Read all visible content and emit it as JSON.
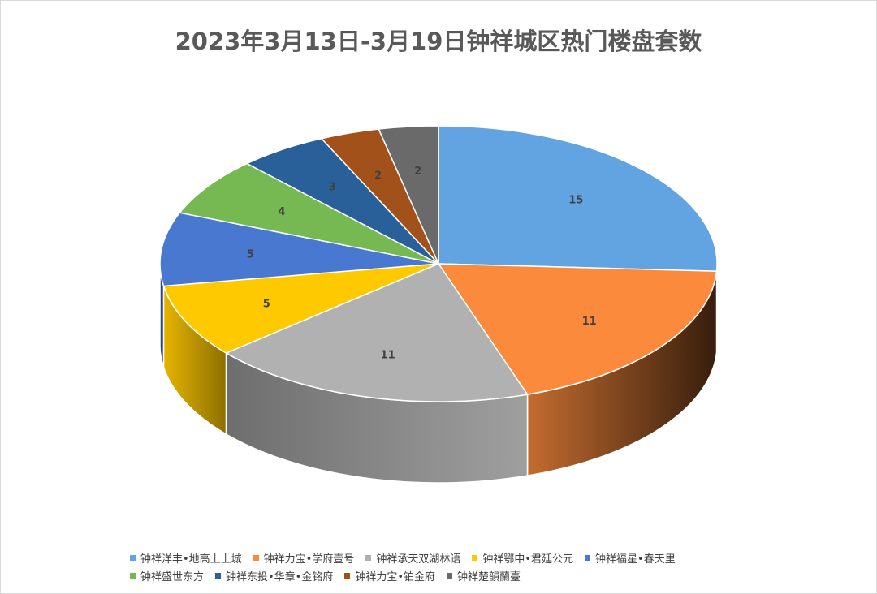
{
  "chart_data": {
    "type": "pie",
    "title": "2023年3月13日-3月19日钟祥城区热门楼盘套数",
    "categories": [
      "钟祥洋丰•地高上上城",
      "钟祥力宝•学府壹号",
      "钟祥承天双湖林语",
      "钟祥鄂中•君廷公元",
      "钟祥福星•春天里",
      "钟祥盛世东方",
      "钟祥东投•华章•金铭府",
      "钟祥力宝•铂金府",
      "钟祥楚韻蘭臺"
    ],
    "values": [
      15,
      11,
      11,
      5,
      5,
      4,
      3,
      2,
      2
    ],
    "colors": [
      "#62a3e2",
      "#fb8a3c",
      "#b1b1b1",
      "#ffc900",
      "#4878d0",
      "#76b852",
      "#2a6099",
      "#a3511a",
      "#6a6a6a"
    ],
    "data_labels": [
      "15",
      "11",
      "11",
      "5",
      "5",
      "4",
      "3",
      "2",
      "2"
    ],
    "legend_position": "bottom",
    "style": "3d"
  }
}
